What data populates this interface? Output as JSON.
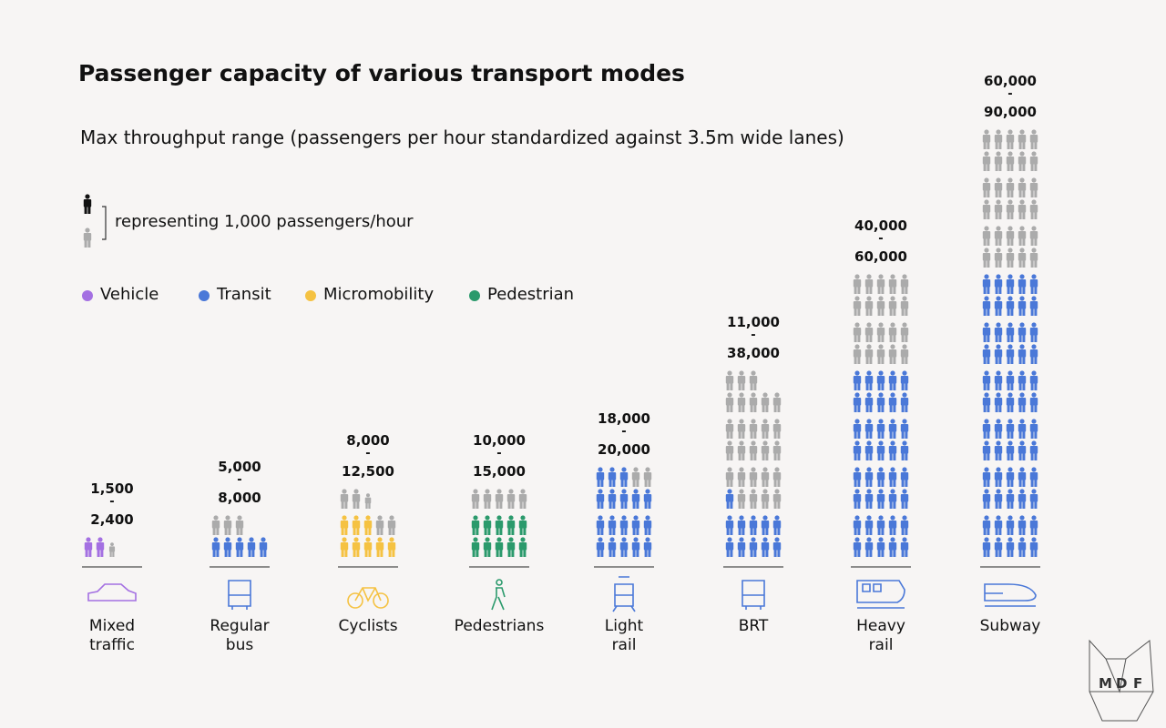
{
  "chart_data": {
    "type": "pictogram",
    "title": "Passenger capacity of various transport modes",
    "subtitle": "Max throughput range (passengers per hour standardized against 3.5m wide lanes)",
    "key_text": "representing 1,000 passengers/hour",
    "per_icon": 1000,
    "legend": [
      {
        "name": "Vehicle",
        "color": "#a470e2"
      },
      {
        "name": "Transit",
        "color": "#4a78d8"
      },
      {
        "name": "Micromobility",
        "color": "#f5c242"
      },
      {
        "name": "Pedestrian",
        "color": "#2b9a6c"
      }
    ],
    "extra_color": "#ababab",
    "categories": [
      "Mixed traffic",
      "Regular bus",
      "Cyclists",
      "Pedestrians",
      "Light rail",
      "BRT",
      "Heavy rail",
      "Subway"
    ],
    "category_groups": [
      0,
      1,
      2,
      3,
      1,
      1,
      1,
      1
    ],
    "range_separator": "-",
    "series": [
      {
        "values": [
          1500,
          5000,
          8000,
          10000,
          18000,
          11000,
          40000,
          60000
        ],
        "value_labels": [
          "1,500",
          "5,000",
          "8,000",
          "10,000",
          "18,000",
          "11,000",
          "40,000",
          "60,000"
        ]
      },
      {
        "values": [
          2400,
          8000,
          12500,
          15000,
          20000,
          38000,
          60000,
          90000
        ],
        "value_labels": [
          "2,400",
          "8,000",
          "12,500",
          "15,000",
          "20,000",
          "38,000",
          "60,000",
          "90,000"
        ]
      }
    ],
    "logo": [
      "M",
      "D",
      "F"
    ]
  }
}
